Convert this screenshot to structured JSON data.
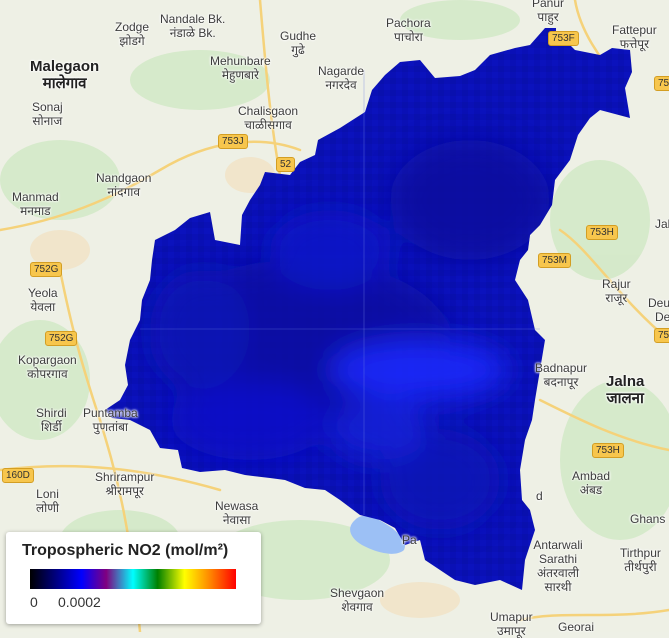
{
  "map": {
    "places": [
      {
        "name": "Zodge",
        "native": "झोडगे"
      },
      {
        "name": "Nandale Bk.",
        "native": "नंडाळे Bk."
      },
      {
        "name": "Gudhe",
        "native": "गुढे"
      },
      {
        "name": "Pachora",
        "native": "पाचोरा"
      },
      {
        "name": "Panur",
        "native": "पाहुर"
      },
      {
        "name": "Fattepur",
        "native": "फत्तेपूर"
      },
      {
        "name": "Malegaon",
        "native": "मालेगाव"
      },
      {
        "name": "Mehunbare",
        "native": "मेहुणबारे"
      },
      {
        "name": "Nagarde",
        "native": "नगरदेव"
      },
      {
        "name": "Sonaj",
        "native": "सोनाज"
      },
      {
        "name": "Chalisgaon",
        "native": "चाळीसगाव"
      },
      {
        "name": "Nandgaon",
        "native": "नांदगाव"
      },
      {
        "name": "Manmad",
        "native": "मनमाड"
      },
      {
        "name": "Yeola",
        "native": "येवला"
      },
      {
        "name": "Kopargaon",
        "native": "कोपरगाव"
      },
      {
        "name": "Shirdi",
        "native": "शिर्डी"
      },
      {
        "name": "Puntamba",
        "native": "पुणतांबा"
      },
      {
        "name": "Shrirampur",
        "native": "श्रीरामपूर"
      },
      {
        "name": "Loni",
        "native": "लोणी"
      },
      {
        "name": "Newasa",
        "native": "नेवासा"
      },
      {
        "name": "Shevgaon",
        "native": "शेवगाव"
      },
      {
        "name": "Umapur",
        "native": "उमापूर"
      },
      {
        "name": "Rajur",
        "native": "राजूर"
      },
      {
        "name": "Badnapur",
        "native": "बदनापूर"
      },
      {
        "name": "Jalna",
        "native": "जालना"
      },
      {
        "name": "Ambad",
        "native": "अंबड"
      },
      {
        "name": "Antarwali Sarathi",
        "native": "अंतरवाली सारथी"
      },
      {
        "name": "Tirthpur",
        "native": "तीर्थपुरी"
      },
      {
        "name": "Ghans",
        "native": ""
      },
      {
        "name": "Jal",
        "native": ""
      },
      {
        "name": "Deu",
        "native": ""
      },
      {
        "name": "Dei",
        "native": ""
      },
      {
        "name": "Georai",
        "native": ""
      },
      {
        "name": "Pa",
        "native": ""
      },
      {
        "name": "d",
        "native": ""
      },
      {
        "name": "Pu",
        "native": ""
      }
    ],
    "roads": [
      "753J",
      "52",
      "752G",
      "752G",
      "160D",
      "753M",
      "753H",
      "753H",
      "75",
      "75",
      "753F"
    ]
  },
  "legend": {
    "title": "Tropospheric NO2 (mol/m²)",
    "min": "0",
    "max": "0.0002",
    "palette": [
      "#000000",
      "#0000ff",
      "#800080",
      "#00ffff",
      "#008000",
      "#ffff00",
      "#ff8000",
      "#ff0000"
    ]
  }
}
